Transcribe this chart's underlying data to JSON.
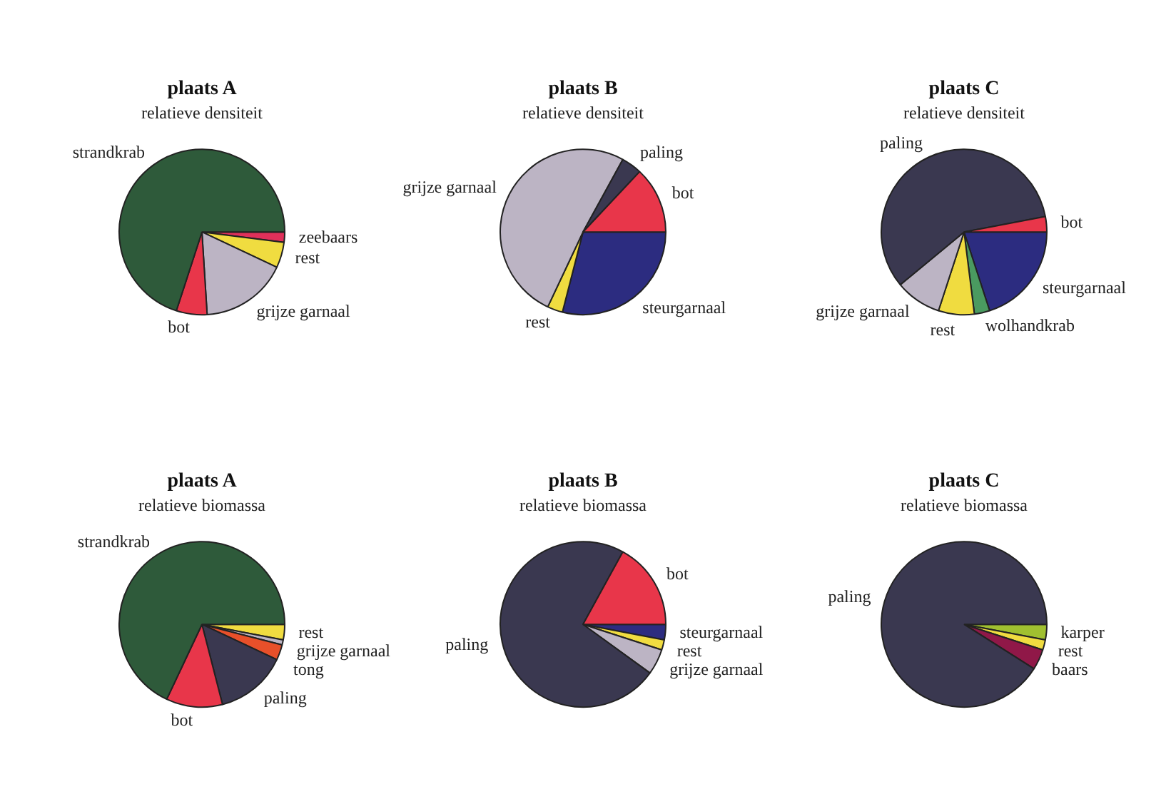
{
  "chart_data": [
    {
      "type": "pie",
      "title": "plaats A",
      "subtitle": "relatieve densiteit",
      "categories": [
        "zeebaars",
        "rest",
        "grijze garnaal",
        "bot",
        "strandkrab"
      ],
      "values": [
        2,
        5,
        17,
        6,
        70
      ],
      "colors": [
        "#e0305a",
        "#f0dc40",
        "#bcb4c4",
        "#e8364a",
        "#2e5a3a"
      ]
    },
    {
      "type": "pie",
      "title": "plaats B",
      "subtitle": "relatieve densiteit",
      "categories": [
        "steurgarnaal",
        "rest",
        "grijze garnaal",
        "paling",
        "bot"
      ],
      "values": [
        29,
        3,
        51,
        4,
        13
      ],
      "colors": [
        "#2c2c80",
        "#f0dc40",
        "#bcb4c4",
        "#3a3850",
        "#e8364a"
      ]
    },
    {
      "type": "pie",
      "title": "plaats C",
      "subtitle": "relatieve densiteit",
      "categories": [
        "steurgarnaal",
        "wolhandkrab",
        "rest",
        "grijze garnaal",
        "paling",
        "bot"
      ],
      "values": [
        20,
        3,
        7,
        9,
        58,
        3
      ],
      "colors": [
        "#2c2c80",
        "#4a9a60",
        "#f0dc40",
        "#bcb4c4",
        "#3a3850",
        "#e8364a"
      ]
    },
    {
      "type": "pie",
      "title": "plaats A",
      "subtitle": "relatieve biomassa",
      "categories": [
        "rest",
        "grijze garnaal",
        "tong",
        "paling",
        "bot",
        "strandkrab"
      ],
      "values": [
        3,
        1,
        3,
        14,
        11,
        68
      ],
      "colors": [
        "#f0dc40",
        "#bcb4c4",
        "#e8502a",
        "#3a3850",
        "#e8364a",
        "#2e5a3a"
      ]
    },
    {
      "type": "pie",
      "title": "plaats B",
      "subtitle": "relatieve biomassa",
      "categories": [
        "steurgarnaal",
        "rest",
        "grijze garnaal",
        "paling",
        "bot"
      ],
      "values": [
        3,
        2,
        5,
        73,
        17
      ],
      "colors": [
        "#2c2c80",
        "#f0dc40",
        "#bcb4c4",
        "#3a3850",
        "#e8364a"
      ]
    },
    {
      "type": "pie",
      "title": "plaats C",
      "subtitle": "relatieve biomassa",
      "categories": [
        "karper",
        "rest",
        "baars",
        "paling"
      ],
      "values": [
        3,
        2,
        4,
        91
      ],
      "colors": [
        "#a0c030",
        "#f0dc40",
        "#901848",
        "#3a3850"
      ]
    }
  ]
}
